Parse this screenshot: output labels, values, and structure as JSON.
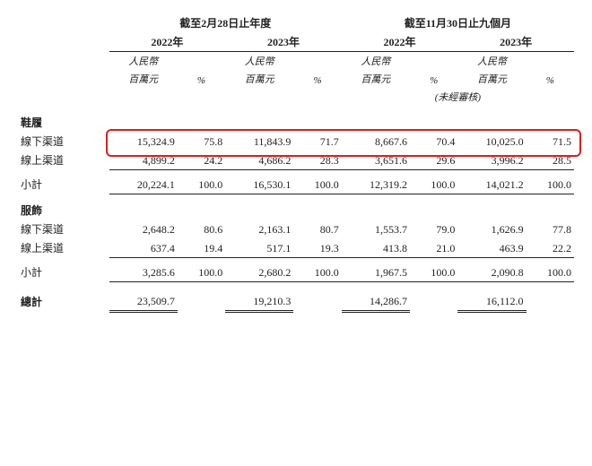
{
  "headers": {
    "period_fy": "截至2月28日止年度",
    "period_9m": "截至11月30日止九個月",
    "y2022": "2022年",
    "y2023": "2023年",
    "unit_rmb": "人民幣",
    "unit_mil": "百萬元",
    "pct": "%",
    "unaudited": "(未經審核)"
  },
  "sections": {
    "footwear": "鞋履",
    "apparel": "服飾",
    "offline": "線下渠道",
    "online": "線上渠道",
    "subtotal": "小計",
    "total": "總計"
  },
  "footwear": {
    "offline": {
      "fy22": "15,324.9",
      "fy22p": "75.8",
      "fy23": "11,843.9",
      "fy23p": "71.7",
      "m22": "8,667.6",
      "m22p": "70.4",
      "m23": "10,025.0",
      "m23p": "71.5"
    },
    "online": {
      "fy22": "4,899.2",
      "fy22p": "24.2",
      "fy23": "4,686.2",
      "fy23p": "28.3",
      "m22": "3,651.6",
      "m22p": "29.6",
      "m23": "3,996.2",
      "m23p": "28.5"
    },
    "sub": {
      "fy22": "20,224.1",
      "fy22p": "100.0",
      "fy23": "16,530.1",
      "fy23p": "100.0",
      "m22": "12,319.2",
      "m22p": "100.0",
      "m23": "14,021.2",
      "m23p": "100.0"
    }
  },
  "apparel": {
    "offline": {
      "fy22": "2,648.2",
      "fy22p": "80.6",
      "fy23": "2,163.1",
      "fy23p": "80.7",
      "m22": "1,553.7",
      "m22p": "79.0",
      "m23": "1,626.9",
      "m23p": "77.8"
    },
    "online": {
      "fy22": "637.4",
      "fy22p": "19.4",
      "fy23": "517.1",
      "fy23p": "19.3",
      "m22": "413.8",
      "m22p": "21.0",
      "m23": "463.9",
      "m23p": "22.2"
    },
    "sub": {
      "fy22": "3,285.6",
      "fy22p": "100.0",
      "fy23": "2,680.2",
      "fy23p": "100.0",
      "m22": "1,967.5",
      "m22p": "100.0",
      "m23": "2,090.8",
      "m23p": "100.0"
    }
  },
  "total": {
    "fy22": "23,509.7",
    "fy23": "19,210.3",
    "m22": "14,286.7",
    "m23": "16,112.0"
  },
  "style": {
    "highlight_color": "#d82020",
    "text_color": "#222222",
    "font_size_body": 12,
    "font_size_header_italic": 11
  }
}
